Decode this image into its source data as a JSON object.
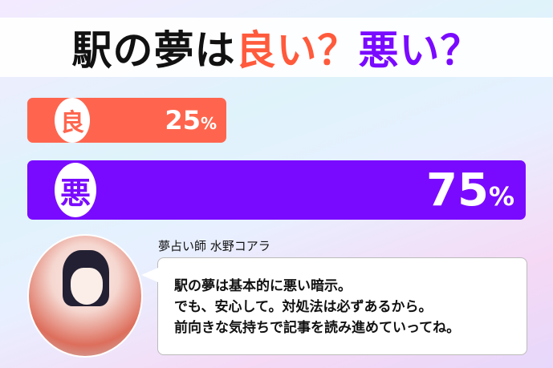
{
  "title": {
    "part1": "駅の夢は",
    "part2": "良い？",
    "part3": "悪い？"
  },
  "colors": {
    "good": "#ff654e",
    "bad": "#7a0aff"
  },
  "results": {
    "good": {
      "label": "良",
      "percent": 25,
      "value": "25",
      "unit": "%"
    },
    "bad": {
      "label": "悪",
      "percent": 75,
      "value": "75",
      "unit": "%"
    }
  },
  "advisor": {
    "name": "夢占い師 水野コアラ",
    "avatar": "fortune-teller-avatar"
  },
  "message": [
    "駅の夢は基本的に悪い暗示。",
    "でも、安心して。対処法は必ずあるから。",
    "前向きな気持ちで記事を読み進めていってね。"
  ]
}
